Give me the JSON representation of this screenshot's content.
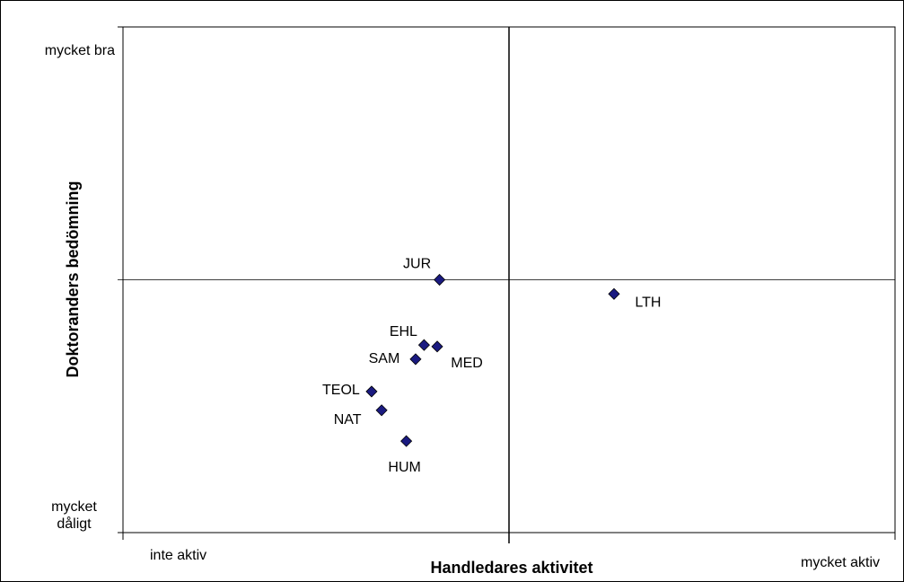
{
  "chart_data": {
    "type": "scatter",
    "x_label": "Handledares aktivitet",
    "y_label": "Doktoranders bedömning",
    "xlim": [
      0,
      10
    ],
    "ylim": [
      0,
      10
    ],
    "xticks": [
      {
        "value": 0,
        "label": "inte aktiv"
      },
      {
        "value": 10,
        "label": "mycket aktiv"
      }
    ],
    "yticks": [
      {
        "value": 0,
        "label": "mycket dåligt"
      },
      {
        "value": 10,
        "label": "mycket bra"
      }
    ],
    "quadrant_lines": {
      "x": 5,
      "y": 5
    },
    "color": "#1a1a80",
    "point_labels": [
      "JUR",
      "LTH",
      "EHL",
      "MED",
      "SAM",
      "TEOL",
      "NAT",
      "HUM"
    ],
    "x": [
      4.1,
      6.36,
      3.9,
      4.07,
      3.79,
      3.22,
      3.35,
      3.67
    ],
    "values": [
      5.0,
      4.72,
      3.71,
      3.68,
      3.43,
      2.79,
      2.42,
      1.81
    ]
  }
}
